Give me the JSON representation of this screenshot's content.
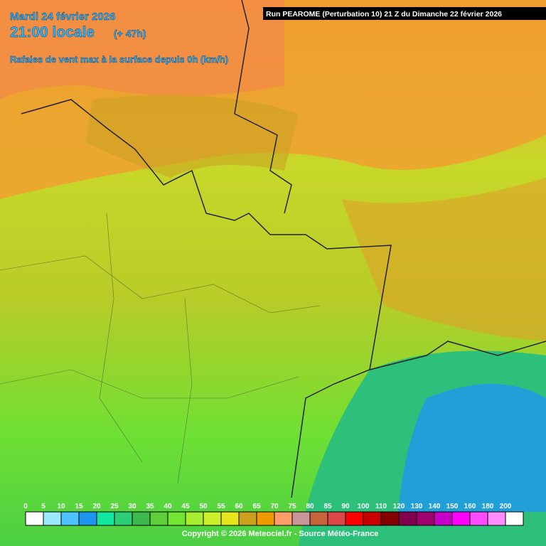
{
  "header": {
    "date": "Mardi 24 février 2026",
    "time": "21:00 locale",
    "offset": "(+ 47h)",
    "field": "Rafales de vent max à la surface depuis 0h (km/h)",
    "run": "Run PEAROME (Perturbation 10) 21 Z du Dimanche 22 février 2026"
  },
  "scale": {
    "ticks": [
      0,
      5,
      10,
      15,
      20,
      25,
      30,
      35,
      40,
      45,
      50,
      55,
      60,
      65,
      70,
      75,
      80,
      85,
      90,
      100,
      110,
      120,
      130,
      140,
      150,
      160,
      180,
      200
    ],
    "colors": [
      "#ffffff",
      "#9be8ff",
      "#4ec4ff",
      "#1e96f0",
      "#12e6a0",
      "#2ccf78",
      "#3cb84e",
      "#5ccf3a",
      "#72e632",
      "#a6ef2e",
      "#ccf02a",
      "#e6e61a",
      "#cca01c",
      "#f09a00",
      "#ff9e6a",
      "#c89696",
      "#c8643c",
      "#dc4646",
      "#ff0000",
      "#c80000",
      "#820000",
      "#82004e",
      "#a0006e",
      "#c800c8",
      "#ff00ff",
      "#ff4cff",
      "#ff8cff",
      "#ffffff"
    ]
  },
  "footer": {
    "copyright": "Copyright © 2026 Meteociel.fr - Source Météo-France"
  }
}
